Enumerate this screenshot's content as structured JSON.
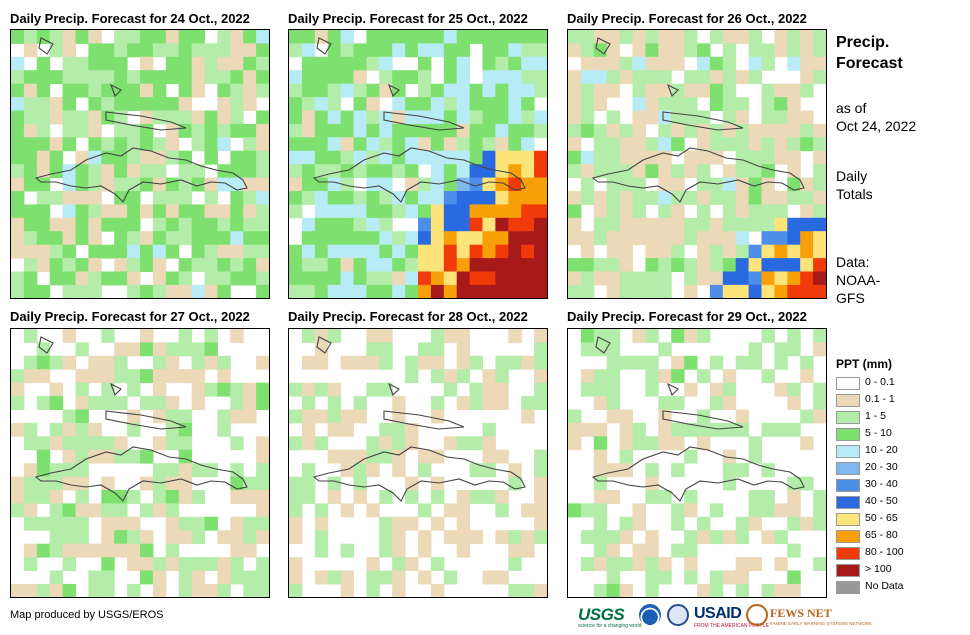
{
  "panels": [
    {
      "title": "Daily Precip. Forecast for 24 Oct., 2022"
    },
    {
      "title": "Daily Precip. Forecast for 25 Oct., 2022"
    },
    {
      "title": "Daily Precip. Forecast for 26 Oct., 2022"
    },
    {
      "title": "Daily Precip. Forecast for 27 Oct., 2022"
    },
    {
      "title": "Daily Precip. Forecast for 28 Oct., 2022"
    },
    {
      "title": "Daily Precip. Forecast for 29 Oct., 2022"
    }
  ],
  "sidebar": {
    "heading_line1": "Precip.",
    "heading_line2": "Forecast",
    "asof_line1": "as of",
    "asof_line2": "Oct 24, 2022",
    "totals_line1": "Daily",
    "totals_line2": "Totals",
    "source_line1": "Data:",
    "source_line2": "NOAA-",
    "source_line3": "GFS"
  },
  "legend": {
    "title": "PPT (mm)",
    "classes": [
      {
        "label": "0 - 0.1",
        "color": "#ffffff"
      },
      {
        "label": "0.1 - 1",
        "color": "#ecd9b8"
      },
      {
        "label": "1 - 5",
        "color": "#b4ecaa"
      },
      {
        "label": "5 - 10",
        "color": "#7ee06e"
      },
      {
        "label": "10 - 20",
        "color": "#b7ecf7"
      },
      {
        "label": "20 - 30",
        "color": "#7fb8f0"
      },
      {
        "label": "30 - 40",
        "color": "#4d8ee8"
      },
      {
        "label": "40 - 50",
        "color": "#2a6ae0"
      },
      {
        "label": "50 - 65",
        "color": "#fde47a"
      },
      {
        "label": "65 - 80",
        "color": "#f7a00a"
      },
      {
        "label": "80 - 100",
        "color": "#f03a0a"
      },
      {
        "label": "> 100",
        "color": "#a8191a"
      },
      {
        "label": "No Data",
        "color": "#999999"
      }
    ]
  },
  "footer": {
    "credit": "Map produced by USGS/EROS",
    "logos": {
      "usgs": "USGS",
      "usgs_tagline": "science for a changing world",
      "noaa": "noaa-logo-icon",
      "seal": "us-seal-icon",
      "usaid": "USAID",
      "usaid_tagline": "FROM THE AMERICAN PEOPLE",
      "fews": "FEWS NET",
      "fews_tagline": "FAMINE EARLY WARNING SYSTEMS NETWORK"
    }
  }
}
